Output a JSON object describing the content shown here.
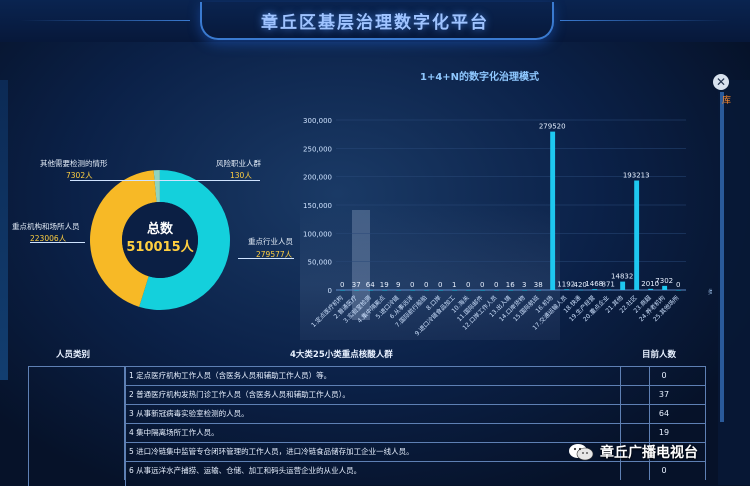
{
  "header": {
    "title": "章丘区基层治理数字化平台"
  },
  "right_panel": {
    "close_glyph": "✕",
    "partial_text": "库"
  },
  "donut": {
    "center_label": "总数",
    "center_value": "510015人",
    "segments": [
      {
        "name": "其他需要检测的情形",
        "value_text": "7302人",
        "value": 7302,
        "color": "#8fd4c0"
      },
      {
        "name": "风险职业人群",
        "value_text": "130人",
        "value": 130,
        "color": "#2ad3e0"
      },
      {
        "name": "重点行业人员",
        "value_text": "279577人",
        "value": 279577,
        "color": "#14d0dc"
      },
      {
        "name": "重点机构和场所人员",
        "value_text": "223006人",
        "value": 223006,
        "color": "#f7b926"
      }
    ]
  },
  "chart_data": {
    "type": "bar",
    "title": "1+4+N的数字化治理模式",
    "yticks": [
      "0",
      "50,000",
      "100,000",
      "150,000",
      "200,000",
      "250,000",
      "300,000"
    ],
    "ylim": [
      0,
      300000
    ],
    "categories": [
      "1.定点医疗机构",
      "2.普通医疗",
      "3.实验室检测",
      "4.集中隔离",
      "5.进口冷链",
      "6.从事远洋",
      "7.国际航行",
      "8.口岸",
      "9.进口冷链加工",
      "10.海关",
      "11.国际邮件",
      "12.口岸人员",
      "13.出入境",
      "14.口岸货物",
      "15.国际航班",
      "16.机场",
      "17.交通运输",
      "18.快递",
      "19.生产经营",
      "20.重点企业",
      "21.其他",
      "22.社区",
      "23.商超",
      "24.养老机构",
      "25.其他场所"
    ],
    "categories_visible": [
      "1.定点医疗机构",
      "2.普通医疗",
      "3.实验室检测",
      "4.集中隔离点",
      "5.进口冷链",
      "6.从事远洋",
      "7.国际航行船舶",
      "8.口岸",
      "9.进口冷链食品加工",
      "10.海关",
      "11.国际邮件",
      "12.口岸工作人员",
      "13.出入境",
      "14.口岸货物",
      "15.国际航班",
      "16.机场",
      "17.交通运输人员",
      "18.快递",
      "19.生产经营",
      "20.重点企业",
      "21.其他",
      "22.社区",
      "23.商超",
      "24.养老机构",
      "25.其他场所"
    ],
    "values": [
      0,
      37,
      64,
      19,
      9,
      0,
      0,
      0,
      1,
      0,
      0,
      0,
      16,
      3,
      38,
      279520,
      1192,
      420,
      1468,
      871,
      14832,
      193213,
      2010,
      7302,
      0
    ],
    "value_labels": [
      "0",
      "37",
      "64",
      "19",
      "9",
      "0",
      "0",
      "0",
      "1",
      "0",
      "0",
      "0",
      "16",
      "3",
      "38",
      "279520",
      "1192",
      "420",
      "1468",
      "871",
      "14832",
      "193213",
      "2010",
      "7302",
      "0"
    ],
    "partial_axis_label": "类型"
  },
  "table": {
    "headers": [
      "人员类别",
      "4大类25小类重点核酸人群",
      "目前人数"
    ],
    "rows": [
      {
        "text": "1 定点医疗机构工作人员（含医务人员和辅助工作人员）等。",
        "count": "0"
      },
      {
        "text": "2 普通医疗机构发热门诊工作人员（含医务人员和辅助工作人员）。",
        "count": "37"
      },
      {
        "text": "3 从事新冠病毒实验室检测的人员。",
        "count": "64"
      },
      {
        "text": "4 集中隔离场所工作人员。",
        "count": "19"
      },
      {
        "text": "5 进口冷链集中监管专仓闭环管理的工作人员，进口冷链食品储存加工企业一线人员。",
        "count": "9"
      },
      {
        "text": "6 从事远洋水产捕捞、运输、仓储、加工和码头运营企业的从业人员。",
        "count": "0"
      }
    ]
  },
  "watermark": {
    "text": "章丘广播电视台"
  }
}
